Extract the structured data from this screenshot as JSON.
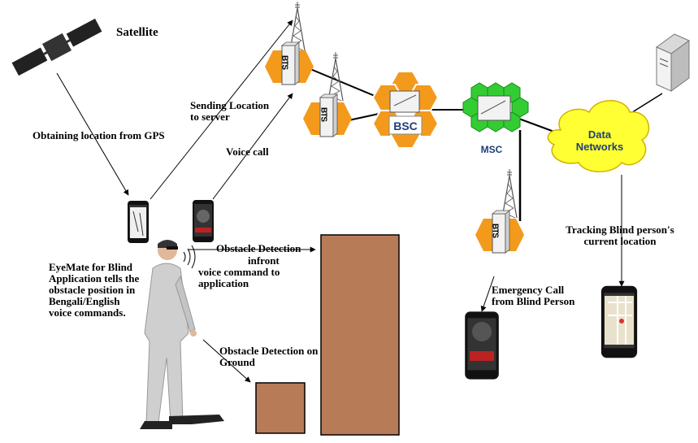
{
  "labels": {
    "satellite": "Satellite",
    "gps": "Obtaining location from GPS",
    "sending_location": "Sending Location\nto server",
    "voice_call": "Voice call",
    "bts": "BTS",
    "bsc": "BSC",
    "msc": "MSC",
    "data_networks": "Data\nNetworks",
    "tracking": "Tracking  Blind person's\ncurrent location",
    "obstacle_front_1": "Obstacle Detection",
    "obstacle_front_2": "infront",
    "voice_command": "voice command to\napplication",
    "eyemate": "EyeMate for Blind\nApplication tells the\nobstacle position in\nBengali/English\nvoice commands.",
    "obstacle_ground": "Obstacle Detection on\nGround",
    "emergency": "Emergency Call\nfrom Blind Person"
  },
  "colors": {
    "orange": "#f39a1d",
    "msc_green": "#33cc33",
    "cloud": "#ffff33",
    "obstacle": "#b87b58",
    "label_blue": "#1f3f7a"
  },
  "icons": [
    "satellite-icon",
    "server-icon",
    "tower-icon",
    "bts-icon",
    "bsc-icon",
    "msc-icon",
    "cloud-icon",
    "phone-icon",
    "person-icon",
    "speaker-icon"
  ]
}
